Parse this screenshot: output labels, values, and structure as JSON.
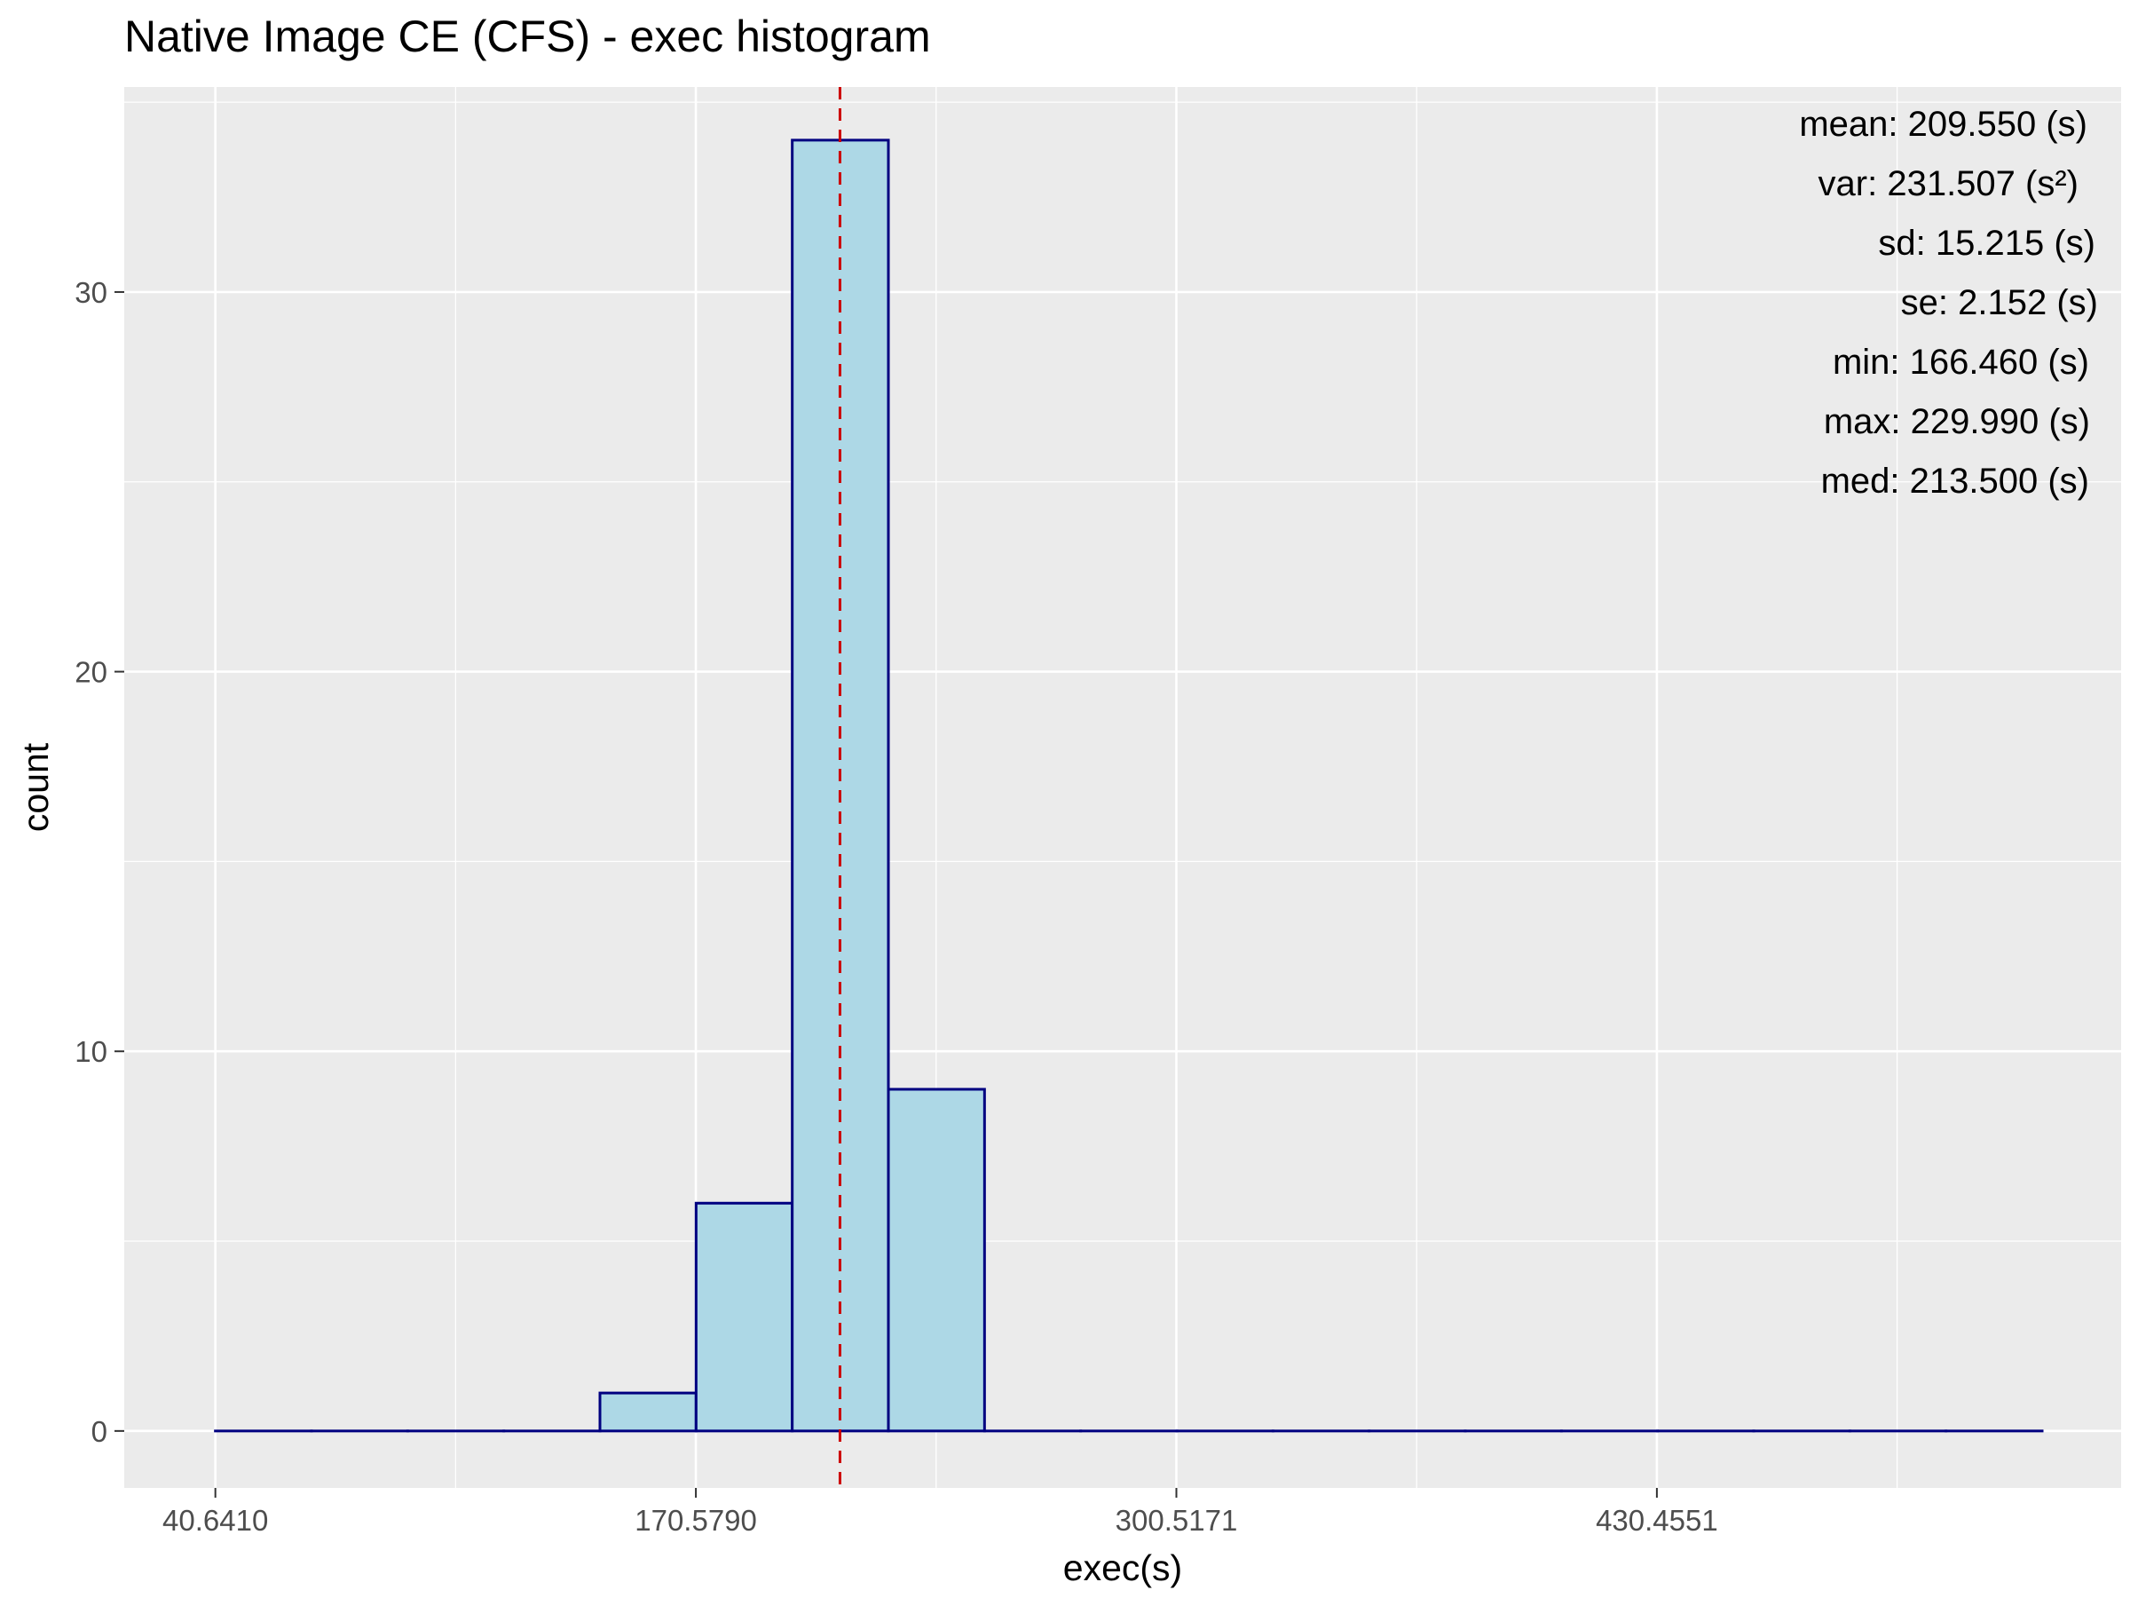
{
  "chart_data": {
    "type": "bar",
    "title": "Native Image CE (CFS) - exec histogram",
    "xlabel": "exec(s)",
    "ylabel": "count",
    "x_ticks": [
      "40.6410",
      "170.5790",
      "300.5171",
      "430.4551"
    ],
    "x_tick_values": [
      40.641,
      170.579,
      300.5171,
      430.4551
    ],
    "y_ticks": [
      "0",
      "10",
      "20",
      "30"
    ],
    "y_tick_values": [
      0,
      10,
      20,
      30
    ],
    "xlim": [
      16,
      556
    ],
    "ylim": [
      -1.5,
      35.4
    ],
    "bin_width": 26,
    "bins": [
      {
        "start": 40.641,
        "end": 66.641,
        "count": 0
      },
      {
        "start": 66.641,
        "end": 92.641,
        "count": 0
      },
      {
        "start": 92.641,
        "end": 118.641,
        "count": 0
      },
      {
        "start": 118.641,
        "end": 144.641,
        "count": 0
      },
      {
        "start": 144.641,
        "end": 170.641,
        "count": 1
      },
      {
        "start": 170.641,
        "end": 196.641,
        "count": 6
      },
      {
        "start": 196.641,
        "end": 222.641,
        "count": 34
      },
      {
        "start": 222.641,
        "end": 248.641,
        "count": 9
      },
      {
        "start": 248.641,
        "end": 274.641,
        "count": 0
      },
      {
        "start": 274.641,
        "end": 300.641,
        "count": 0
      },
      {
        "start": 300.641,
        "end": 326.641,
        "count": 0
      },
      {
        "start": 326.641,
        "end": 352.641,
        "count": 0
      },
      {
        "start": 352.641,
        "end": 378.641,
        "count": 0
      },
      {
        "start": 378.641,
        "end": 404.641,
        "count": 0
      },
      {
        "start": 404.641,
        "end": 430.641,
        "count": 0
      },
      {
        "start": 430.641,
        "end": 456.641,
        "count": 0
      },
      {
        "start": 456.641,
        "end": 482.641,
        "count": 0
      },
      {
        "start": 482.641,
        "end": 508.641,
        "count": 0
      },
      {
        "start": 508.641,
        "end": 534.641,
        "count": 0
      }
    ],
    "mean_line": {
      "x": 209.55,
      "color": "#cc0000",
      "style": "dashed"
    },
    "stats": [
      "mean: 209.550 (s)",
      "var: 231.507 (s²)",
      "sd: 15.215 (s)",
      "se: 2.152 (s)",
      "min: 166.460 (s)",
      "max: 229.990 (s)",
      "med: 213.500 (s)"
    ],
    "grid": true,
    "legend": "none",
    "colors": {
      "panel_bg": "#ebebeb",
      "grid": "#ffffff",
      "bar_fill": "#add8e6",
      "bar_outline": "#000080",
      "mean_line": "#cc0000"
    }
  }
}
